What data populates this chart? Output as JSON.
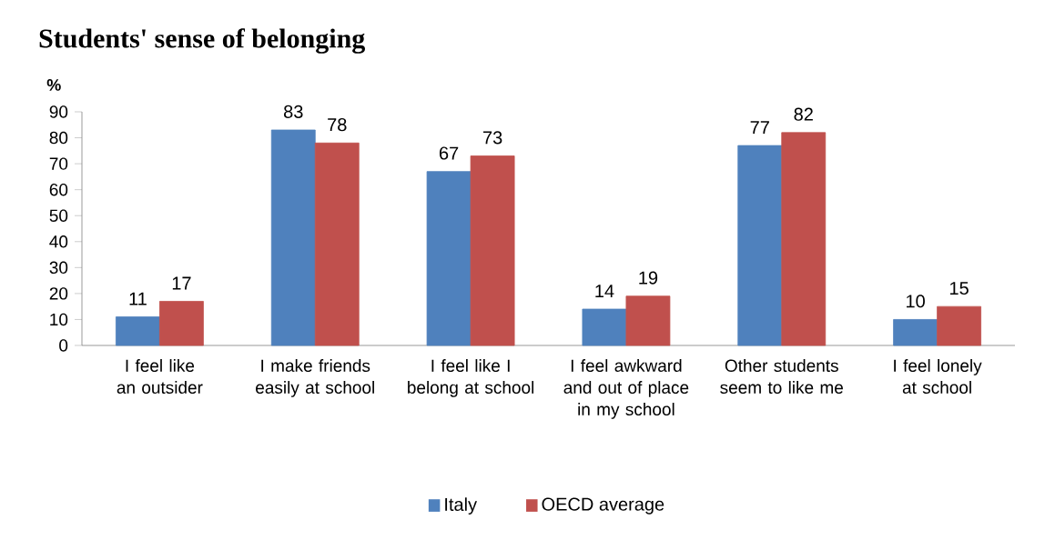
{
  "chart_data": {
    "type": "bar",
    "title": "Students' sense of belonging",
    "ylabel": "%",
    "categories": [
      "I feel like an outsider",
      "I make friends easily at school",
      "I feel like I belong at school",
      "I feel awkward and out of place in my school",
      "Other students seem to like me",
      "I feel lonely at school"
    ],
    "series": [
      {
        "name": "Italy",
        "color": "#4f81bd",
        "values": [
          11,
          83,
          67,
          14,
          77,
          10
        ]
      },
      {
        "name": "OECD average",
        "color": "#c0504d",
        "values": [
          17,
          78,
          73,
          19,
          82,
          15
        ]
      }
    ],
    "ylim": [
      0,
      90
    ],
    "yticks": [
      0,
      10,
      20,
      30,
      40,
      50,
      60,
      70,
      80,
      90
    ],
    "data_labels": true,
    "legend": "bottom"
  }
}
